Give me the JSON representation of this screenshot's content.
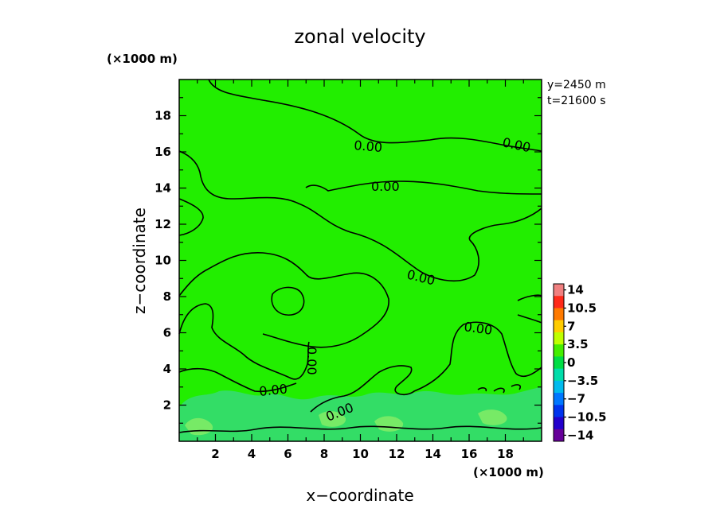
{
  "chart_data": {
    "type": "heatmap",
    "title": "zonal velocity",
    "xlabel": "x−coordinate",
    "ylabel": "z−coordinate",
    "x_unit": "(×1000 m)",
    "y_unit": "(×1000 m)",
    "xlim": [
      0,
      20
    ],
    "ylim": [
      0,
      20
    ],
    "x_ticks": [
      "2",
      "4",
      "6",
      "8",
      "10",
      "12",
      "14",
      "16",
      "18"
    ],
    "y_ticks": [
      "2",
      "4",
      "6",
      "8",
      "10",
      "12",
      "14",
      "16",
      "18"
    ],
    "info": [
      "y=2450 m",
      "t=21600 s"
    ],
    "contour_labels": [
      "0.00",
      "0.00",
      "0.00",
      "0.00",
      "0.00",
      "0.00",
      "0.00",
      "0.00"
    ],
    "colorbar": {
      "labels": [
        "14",
        "10.5",
        "7",
        "3.5",
        "0",
        "−3.5",
        "−7",
        "−10.5",
        "−14"
      ],
      "colors": [
        "#f08080",
        "#ff2a1a",
        "#ff7a00",
        "#ffcc00",
        "#bfff00",
        "#44ee00",
        "#00dd44",
        "#00ddaa",
        "#00bbee",
        "#0077ff",
        "#0033ee",
        "#2200cc",
        "#660099"
      ]
    },
    "field_colors": {
      "background": "#22ee00",
      "near_surface": "#33dd66",
      "patches": "#88ee66"
    }
  }
}
